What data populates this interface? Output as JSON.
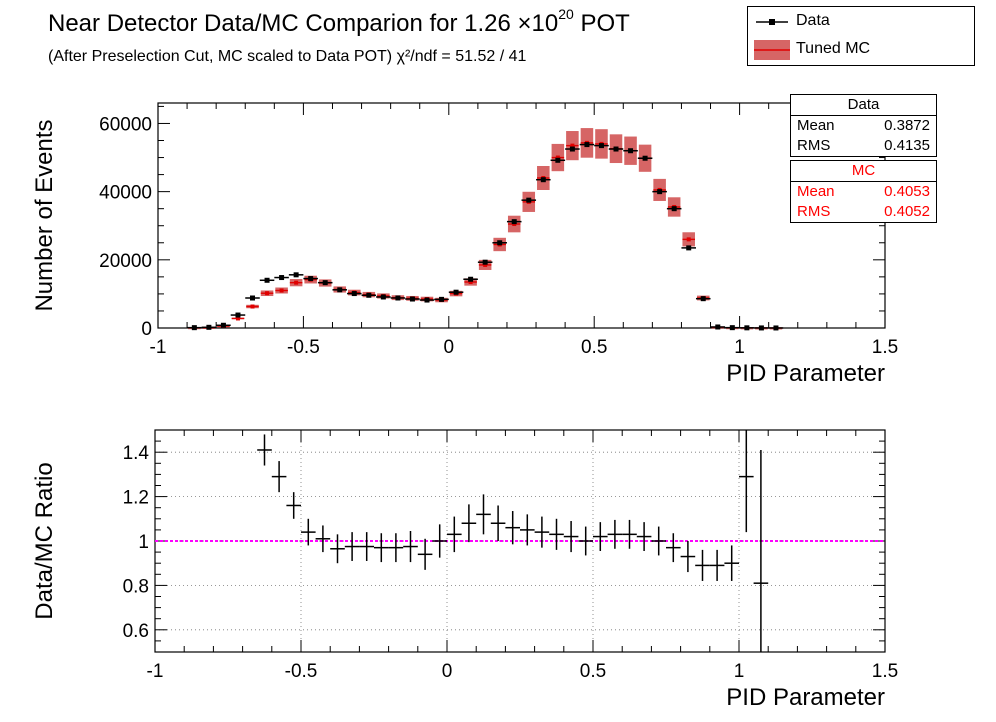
{
  "header": {
    "title_main": "Near Detector Data/MC Comparion for 1.26 ×10",
    "title_exp": "20",
    "title_tail": " POT",
    "subtitle": "(After Preselection Cut, MC scaled to Data POT)    χ²/ndf = 51.52 / 41"
  },
  "legend": {
    "data_label": "Data",
    "mc_label": "Tuned MC"
  },
  "stats": {
    "data": {
      "title": "Data",
      "mean_label": "Mean",
      "mean": "0.3872",
      "rms_label": "RMS",
      "rms": "0.4135"
    },
    "mc": {
      "title": "MC",
      "mean_label": "Mean",
      "mean": "0.4053",
      "rms_label": "RMS",
      "rms": "0.4052"
    }
  },
  "colors": {
    "data": "#000000",
    "mc": "#e00000",
    "band": "#c83232",
    "ratio_line": "#ff00ff"
  },
  "chart_data": [
    {
      "type": "bar",
      "xlabel": "PID Parameter",
      "ylabel": "Number of Events",
      "xlim": [
        -1,
        1.5
      ],
      "ylim": [
        0,
        66000
      ],
      "x_ticks": [
        "-1",
        "-0.5",
        "0",
        "0.5",
        "1",
        "1.5"
      ],
      "y_ticks": [
        "0",
        "20000",
        "40000",
        "60000"
      ],
      "bin_width": 0.05,
      "series": [
        {
          "name": "Data",
          "x": [
            -0.875,
            -0.825,
            -0.775,
            -0.725,
            -0.675,
            -0.625,
            -0.575,
            -0.525,
            -0.475,
            -0.425,
            -0.375,
            -0.325,
            -0.275,
            -0.225,
            -0.175,
            -0.125,
            -0.075,
            -0.025,
            0.025,
            0.075,
            0.125,
            0.175,
            0.225,
            0.275,
            0.325,
            0.375,
            0.425,
            0.475,
            0.525,
            0.575,
            0.625,
            0.675,
            0.725,
            0.775,
            0.825,
            0.875,
            0.925,
            0.975,
            1.025,
            1.075,
            1.125
          ],
          "values": [
            100,
            200,
            800,
            3800,
            8800,
            14000,
            14800,
            15600,
            14500,
            13300,
            11200,
            10100,
            9600,
            9100,
            8800,
            8500,
            8200,
            8400,
            10500,
            14300,
            19300,
            25000,
            31200,
            37500,
            43500,
            49200,
            52500,
            53800,
            53500,
            52500,
            52000,
            49800,
            40000,
            35000,
            23500,
            8600,
            300,
            100,
            50,
            20,
            10
          ]
        },
        {
          "name": "Tuned MC",
          "x": [
            -0.875,
            -0.825,
            -0.775,
            -0.725,
            -0.675,
            -0.625,
            -0.575,
            -0.525,
            -0.475,
            -0.425,
            -0.375,
            -0.325,
            -0.275,
            -0.225,
            -0.175,
            -0.125,
            -0.075,
            -0.025,
            0.025,
            0.075,
            0.125,
            0.175,
            0.225,
            0.275,
            0.325,
            0.375,
            0.425,
            0.475,
            0.525,
            0.575,
            0.625,
            0.675,
            0.725,
            0.775,
            0.825,
            0.875,
            0.925,
            0.975,
            1.025,
            1.075,
            1.125
          ],
          "values": [
            80,
            150,
            600,
            2800,
            6300,
            10200,
            11000,
            13300,
            14200,
            13200,
            11300,
            10400,
            9800,
            9400,
            8900,
            8700,
            8500,
            8200,
            10100,
            13500,
            18500,
            24500,
            30500,
            37000,
            44000,
            50000,
            53500,
            54300,
            54000,
            52600,
            52000,
            49800,
            40500,
            35500,
            26000,
            8800,
            250,
            80,
            40,
            15,
            8
          ],
          "band_frac": 0.08
        }
      ]
    },
    {
      "type": "scatter",
      "xlabel": "PID Parameter",
      "ylabel": "Data/MC Ratio",
      "xlim": [
        -1,
        1.5
      ],
      "ylim": [
        0.5,
        1.5
      ],
      "x_ticks": [
        "-1",
        "-0.5",
        "0",
        "0.5",
        "1",
        "1.5"
      ],
      "y_ticks": [
        "0.6",
        "0.8",
        "1",
        "1.2",
        "1.4"
      ],
      "reference_line": 1,
      "series": [
        {
          "name": "Data/MC Ratio",
          "x": [
            -0.625,
            -0.575,
            -0.525,
            -0.475,
            -0.425,
            -0.375,
            -0.325,
            -0.275,
            -0.225,
            -0.175,
            -0.125,
            -0.075,
            -0.025,
            0.025,
            0.075,
            0.125,
            0.175,
            0.225,
            0.275,
            0.325,
            0.375,
            0.425,
            0.475,
            0.525,
            0.575,
            0.625,
            0.675,
            0.725,
            0.775,
            0.825,
            0.875,
            0.925,
            0.975,
            1.025,
            1.075
          ],
          "values": [
            1.41,
            1.29,
            1.16,
            1.04,
            1.01,
            0.965,
            0.975,
            0.975,
            0.97,
            0.97,
            0.975,
            0.94,
            1.0,
            1.03,
            1.08,
            1.12,
            1.08,
            1.06,
            1.05,
            1.04,
            1.03,
            1.02,
            1.0,
            1.02,
            1.03,
            1.03,
            1.02,
            1.0,
            0.97,
            0.93,
            0.89,
            0.89,
            0.9,
            1.29,
            0.81
          ],
          "errors": [
            0.07,
            0.07,
            0.06,
            0.06,
            0.06,
            0.065,
            0.065,
            0.065,
            0.065,
            0.065,
            0.07,
            0.07,
            0.075,
            0.08,
            0.085,
            0.09,
            0.08,
            0.075,
            0.07,
            0.07,
            0.07,
            0.07,
            0.065,
            0.065,
            0.065,
            0.065,
            0.065,
            0.065,
            0.065,
            0.07,
            0.07,
            0.07,
            0.08,
            0.25,
            0.6
          ]
        }
      ]
    }
  ]
}
